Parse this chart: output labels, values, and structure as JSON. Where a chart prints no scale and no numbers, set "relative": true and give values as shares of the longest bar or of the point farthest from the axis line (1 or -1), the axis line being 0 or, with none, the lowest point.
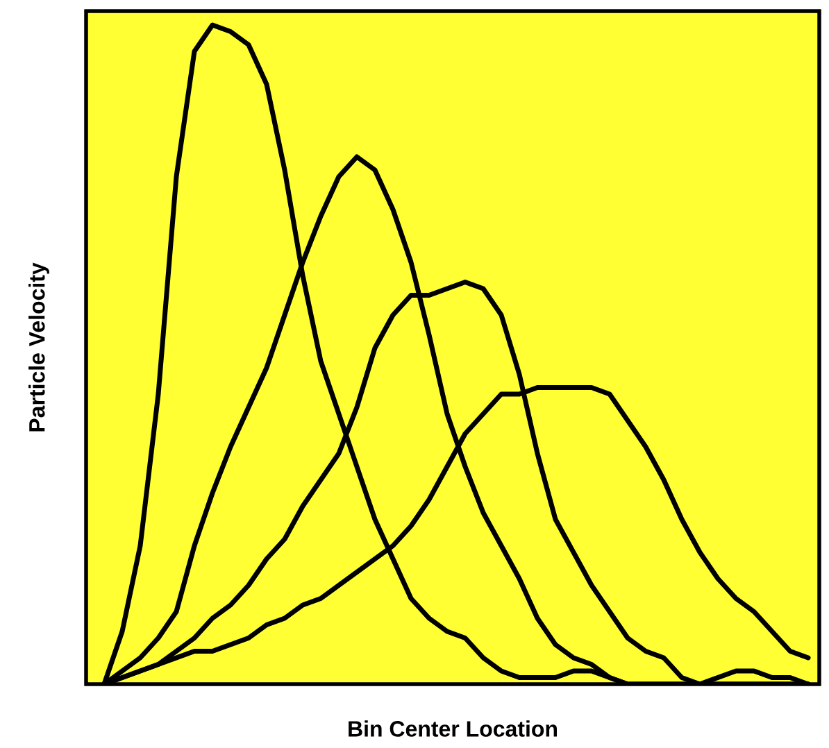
{
  "chart_data": {
    "type": "line",
    "relative": true,
    "xlabel": "Bin Center Location",
    "ylabel": "Particle Velocity",
    "categories": [
      null,
      null,
      null,
      null,
      null,
      null,
      null,
      null,
      null,
      null,
      null,
      null,
      null,
      null,
      null,
      null,
      null,
      null,
      null,
      null,
      null,
      null,
      null,
      null,
      null,
      null,
      null,
      null,
      null,
      null,
      null,
      null,
      null,
      null,
      null,
      null,
      null,
      null,
      null,
      null
    ],
    "series": [
      {
        "color": "#000000",
        "values": [
          0,
          0.08,
          0.21,
          0.44,
          0.77,
          0.96,
          1.0,
          0.99,
          0.97,
          0.91,
          0.78,
          0.62,
          0.49,
          0.41,
          0.33,
          0.25,
          0.19,
          0.13,
          0.1,
          0.08,
          0.07,
          0.04,
          0.02,
          0.01,
          0.01,
          0.01,
          0.02,
          0.02,
          0.01,
          0,
          0,
          0,
          0,
          0,
          0,
          0,
          0,
          0,
          0,
          0
        ]
      },
      {
        "color": "#000000",
        "values": [
          0,
          0.02,
          0.04,
          0.07,
          0.11,
          0.21,
          0.29,
          0.36,
          0.42,
          0.48,
          0.56,
          0.64,
          0.71,
          0.77,
          0.8,
          0.78,
          0.72,
          0.64,
          0.53,
          0.41,
          0.33,
          0.26,
          0.21,
          0.16,
          0.1,
          0.06,
          0.04,
          0.03,
          0.01,
          0,
          0,
          0,
          0,
          0,
          0,
          0,
          0,
          0,
          0,
          0
        ]
      },
      {
        "color": "#000000",
        "values": [
          0,
          0.01,
          0.02,
          0.03,
          0.05,
          0.07,
          0.1,
          0.12,
          0.15,
          0.19,
          0.22,
          0.27,
          0.31,
          0.35,
          0.42,
          0.51,
          0.56,
          0.59,
          0.59,
          0.6,
          0.61,
          0.6,
          0.56,
          0.47,
          0.35,
          0.25,
          0.2,
          0.15,
          0.11,
          0.07,
          0.05,
          0.04,
          0.01,
          0,
          0.01,
          0.02,
          0.02,
          0.01,
          0.01,
          0
        ]
      },
      {
        "color": "#000000",
        "values": [
          0,
          0.01,
          0.02,
          0.03,
          0.04,
          0.05,
          0.05,
          0.06,
          0.07,
          0.09,
          0.1,
          0.12,
          0.13,
          0.15,
          0.17,
          0.19,
          0.21,
          0.24,
          0.28,
          0.33,
          0.38,
          0.41,
          0.44,
          0.44,
          0.45,
          0.45,
          0.45,
          0.45,
          0.44,
          0.4,
          0.36,
          0.31,
          0.25,
          0.2,
          0.16,
          0.13,
          0.11,
          0.08,
          0.05,
          0.04
        ]
      }
    ]
  }
}
